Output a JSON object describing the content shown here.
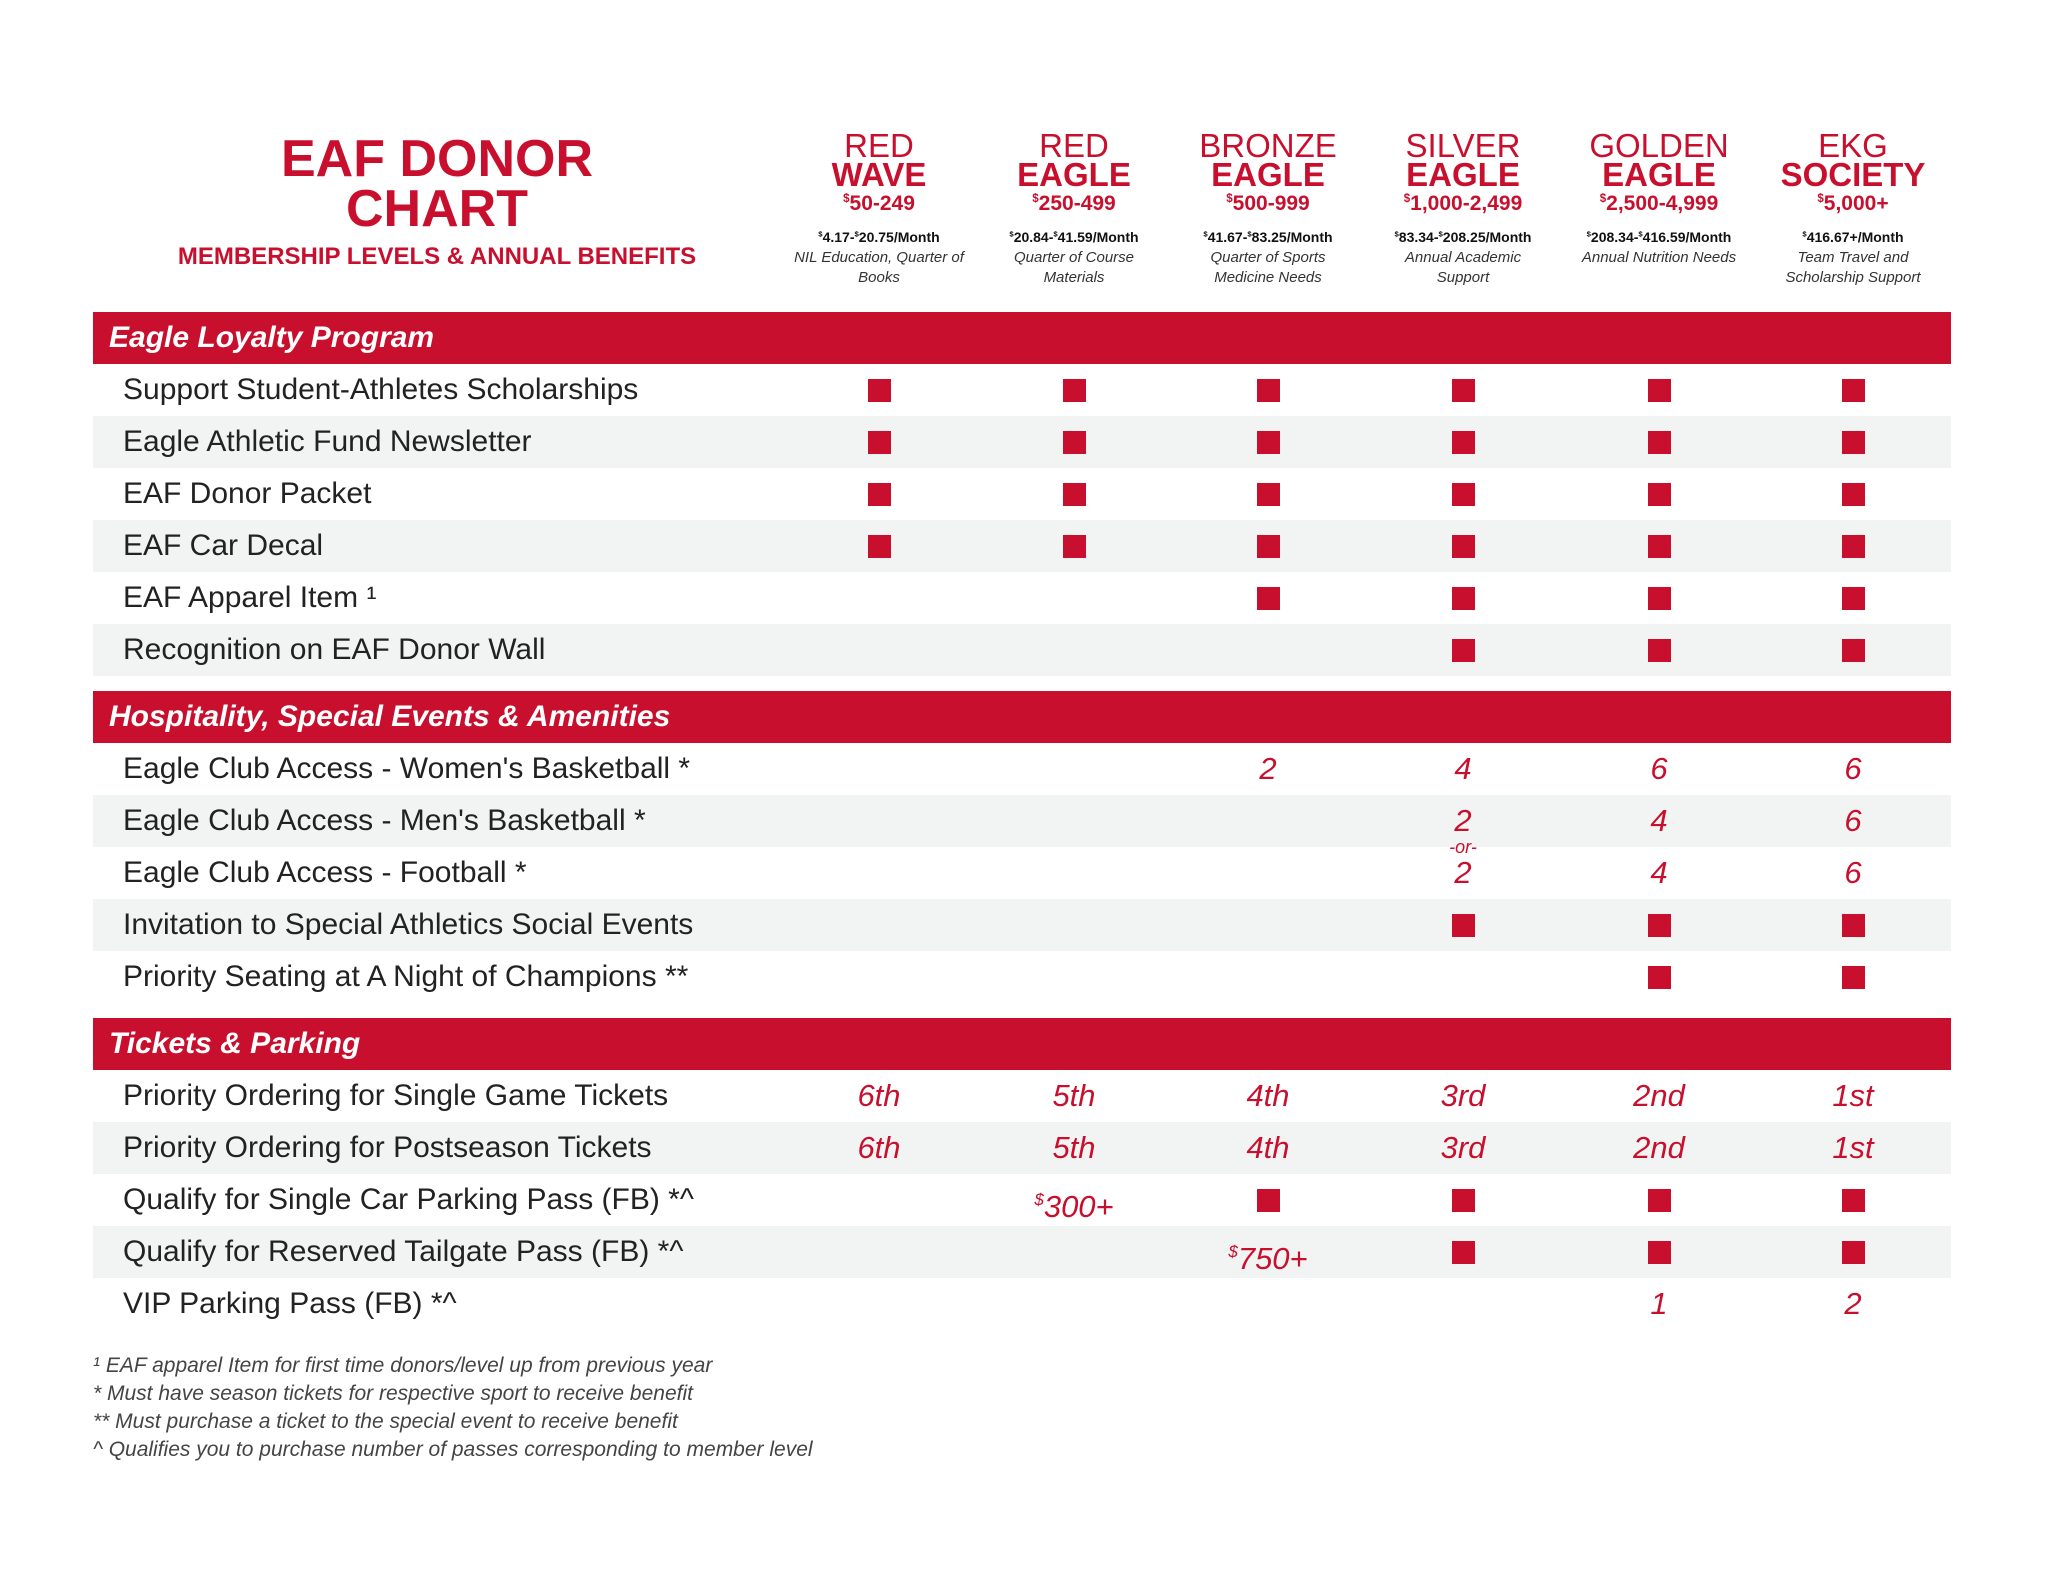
{
  "header": {
    "title_lines": [
      "EAF DONOR",
      "CHART"
    ],
    "subtitle": "MEMBERSHIP LEVELS & ANNUAL BENEFITS"
  },
  "levels": [
    {
      "line1": "RED",
      "line2": "WAVE",
      "price": "$50-249",
      "monthly": "$4.17-$20.75/Month",
      "purpose": "NIL Education, Quarter of Books"
    },
    {
      "line1": "RED",
      "line2": "EAGLE",
      "price": "$250-499",
      "monthly": "$20.84-$41.59/Month",
      "purpose": "Quarter of Course Materials"
    },
    {
      "line1": "BRONZE",
      "line2": "EAGLE",
      "price": "$500-999",
      "monthly": "$41.67-$83.25/Month",
      "purpose": "Quarter of Sports Medicine Needs"
    },
    {
      "line1": "SILVER",
      "line2": "EAGLE",
      "price": "$1,000-2,499",
      "monthly": "$83.34-$208.25/Month",
      "purpose": "Annual Academic Support"
    },
    {
      "line1": "GOLDEN",
      "line2": "EAGLE",
      "price": "$2,500-4,999",
      "monthly": "$208.34-$416.59/Month",
      "purpose": "Annual Nutrition Needs"
    },
    {
      "line1": "EKG",
      "line2": "SOCIETY",
      "price": "$5,000+",
      "monthly": "$416.67+/Month",
      "purpose": "Team Travel and Scholarship Support"
    }
  ],
  "sections": [
    {
      "title": "Eagle Loyalty Program",
      "rows": [
        {
          "label": "Support Student-Athletes Scholarships",
          "cells": [
            true,
            true,
            true,
            true,
            true,
            true
          ]
        },
        {
          "label": "Eagle Athletic Fund Newsletter",
          "cells": [
            true,
            true,
            true,
            true,
            true,
            true
          ]
        },
        {
          "label": "EAF Donor Packet",
          "cells": [
            true,
            true,
            true,
            true,
            true,
            true
          ]
        },
        {
          "label": "EAF Car Decal",
          "cells": [
            true,
            true,
            true,
            true,
            true,
            true
          ]
        },
        {
          "label": "EAF Apparel Item ¹",
          "cells": [
            null,
            null,
            true,
            true,
            true,
            true
          ]
        },
        {
          "label": "Recognition on EAF Donor Wall",
          "cells": [
            null,
            null,
            null,
            true,
            true,
            true
          ]
        }
      ]
    },
    {
      "title": "Hospitality, Special Events & Amenities",
      "or_note": "-or-",
      "rows": [
        {
          "label": "Eagle Club Access - Women's Basketball *",
          "cells": [
            null,
            null,
            2,
            4,
            6,
            6
          ]
        },
        {
          "label": "Eagle Club Access - Men's Basketball *",
          "cells": [
            null,
            null,
            null,
            2,
            4,
            6
          ]
        },
        {
          "label": "Eagle Club Access - Football *",
          "cells": [
            null,
            null,
            null,
            2,
            4,
            6
          ]
        },
        {
          "label": "Invitation to Special Athletics Social Events",
          "cells": [
            null,
            null,
            null,
            true,
            true,
            true
          ]
        },
        {
          "label": "Priority Seating at A Night of Champions **",
          "cells": [
            null,
            null,
            null,
            null,
            true,
            true
          ]
        }
      ]
    },
    {
      "title": "Tickets & Parking",
      "rows": [
        {
          "label": "Priority Ordering for Single Game Tickets",
          "cells": [
            "6th",
            "5th",
            "4th",
            "3rd",
            "2nd",
            "1st"
          ]
        },
        {
          "label": "Priority Ordering for Postseason Tickets",
          "cells": [
            "6th",
            "5th",
            "4th",
            "3rd",
            "2nd",
            "1st"
          ]
        },
        {
          "label": "Qualify for Single Car Parking Pass (FB) *^",
          "cells": [
            null,
            "$300+",
            true,
            true,
            true,
            true
          ]
        },
        {
          "label": "Qualify for Reserved Tailgate Pass (FB) *^",
          "cells": [
            null,
            null,
            "$750+",
            true,
            true,
            true
          ]
        },
        {
          "label": "VIP Parking Pass (FB) *^",
          "cells": [
            null,
            null,
            null,
            null,
            1,
            2
          ]
        }
      ]
    }
  ],
  "footnotes": [
    "¹ EAF apparel Item for first time donors/level up from previous year",
    "* Must have season tickets for respective sport to receive benefit",
    "** Must purchase a ticket to the special event to receive benefit",
    "^ Qualifies you to purchase number of passes corresponding to member level"
  ]
}
